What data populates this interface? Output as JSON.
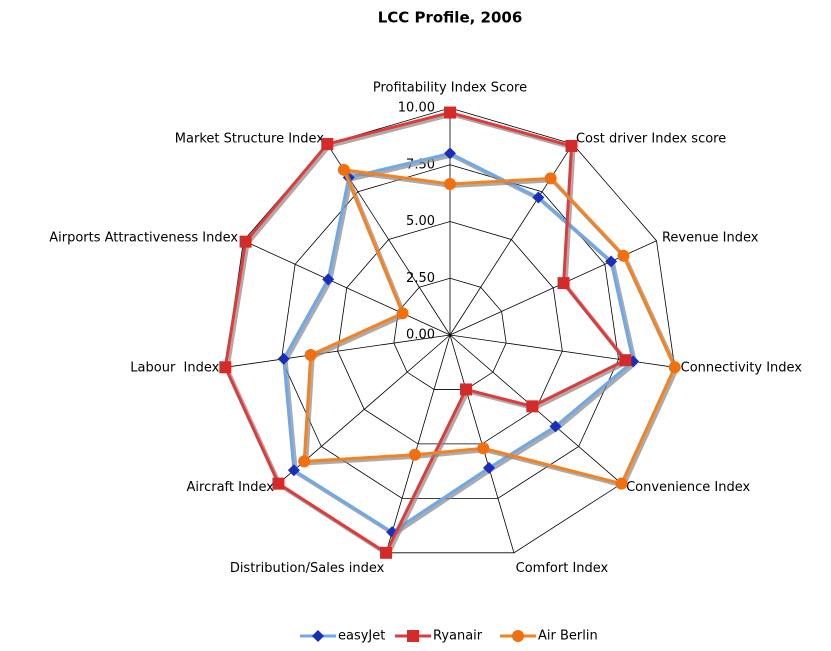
{
  "chart_data": {
    "type": "radar",
    "title": "LCC Profile, 2006",
    "categories": [
      "Profitability Index Score",
      "Cost driver Index score",
      "Revenue Index",
      "Connectivity Index",
      "Convenience Index",
      "Comfort Index",
      "Distribution/Sales index",
      "Aircraft Index",
      "Labour  Index",
      "Airports Attractiveness Index",
      "Market Structure Index"
    ],
    "series": [
      {
        "name": "easyJet",
        "color": "#6fa8e8",
        "marker_color": "#1a2fb8",
        "marker": "diamond",
        "values": [
          8.0,
          7.2,
          7.8,
          8.15,
          6.15,
          6.1,
          9.05,
          9.1,
          7.4,
          5.9,
          8.25
        ]
      },
      {
        "name": "Ryanair",
        "color": "#e03a3a",
        "marker_color": "#d42a2a",
        "marker": "square",
        "values": [
          9.8,
          9.9,
          5.5,
          7.8,
          4.8,
          2.5,
          10.0,
          10.0,
          10.0,
          9.9,
          10.0
        ]
      },
      {
        "name": "Air Berlin",
        "color": "#f58220",
        "marker_color": "#f07010",
        "marker": "circle",
        "values": [
          6.65,
          8.2,
          8.4,
          10.0,
          10.0,
          5.2,
          5.5,
          8.5,
          6.2,
          2.3,
          8.65
        ]
      }
    ],
    "ylim": [
      0,
      10
    ],
    "yticks": [
      {
        "value": 0,
        "label": "0.00"
      },
      {
        "value": 2.5,
        "label": "2.50"
      },
      {
        "value": 5,
        "label": "5.00"
      },
      {
        "value": 7.5,
        "label": "7.50"
      },
      {
        "value": 10,
        "label": "10.00"
      }
    ],
    "grid": true,
    "legend": "bottom"
  }
}
